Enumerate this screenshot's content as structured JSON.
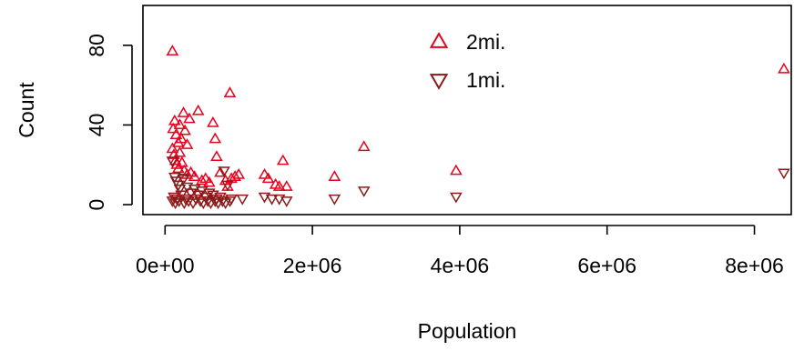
{
  "chart_data": {
    "type": "scatter",
    "xlabel": "Population",
    "ylabel": "Count",
    "xlim": [
      -300000,
      8500000
    ],
    "ylim": [
      -5,
      100
    ],
    "x_ticks": [
      0,
      2000000,
      4000000,
      6000000,
      8000000
    ],
    "x_tick_labels": [
      "0e+00",
      "2e+06",
      "4e+06",
      "6e+06",
      "8e+06"
    ],
    "y_ticks": [
      0,
      40,
      80
    ],
    "y_tick_labels": [
      "0",
      "40",
      "80"
    ],
    "legend": {
      "position": "top-center"
    },
    "series": [
      {
        "name": "2mi.",
        "marker": "triangle-up",
        "color": "#e8001c",
        "points": [
          [
            100000,
            77
          ],
          [
            110000,
            38
          ],
          [
            130000,
            42
          ],
          [
            150000,
            35
          ],
          [
            180000,
            31
          ],
          [
            200000,
            40
          ],
          [
            220000,
            33
          ],
          [
            250000,
            46
          ],
          [
            270000,
            37
          ],
          [
            300000,
            30
          ],
          [
            330000,
            43
          ],
          [
            450000,
            47
          ],
          [
            650000,
            41
          ],
          [
            680000,
            33
          ],
          [
            700000,
            24
          ],
          [
            880000,
            56
          ],
          [
            950000,
            14
          ],
          [
            1000000,
            15
          ],
          [
            1350000,
            15
          ],
          [
            1400000,
            13
          ],
          [
            1550000,
            9
          ],
          [
            1600000,
            22
          ],
          [
            1650000,
            9
          ],
          [
            2300000,
            14
          ],
          [
            2700000,
            29
          ],
          [
            3950000,
            17
          ],
          [
            8400000,
            68
          ],
          [
            100000,
            28
          ],
          [
            120000,
            25
          ],
          [
            140000,
            22
          ],
          [
            160000,
            20
          ],
          [
            180000,
            18
          ],
          [
            200000,
            26
          ],
          [
            230000,
            21
          ],
          [
            260000,
            17
          ],
          [
            300000,
            15
          ],
          [
            350000,
            16
          ],
          [
            400000,
            14
          ],
          [
            500000,
            12
          ],
          [
            550000,
            13
          ],
          [
            600000,
            11
          ],
          [
            750000,
            16
          ],
          [
            820000,
            12
          ],
          [
            850000,
            9
          ],
          [
            900000,
            13
          ],
          [
            1500000,
            10
          ]
        ]
      },
      {
        "name": "1mi.",
        "marker": "triangle-down",
        "color": "#8b1a1a",
        "points": [
          [
            100000,
            22
          ],
          [
            130000,
            14
          ],
          [
            150000,
            12
          ],
          [
            180000,
            10
          ],
          [
            200000,
            8
          ],
          [
            250000,
            13
          ],
          [
            300000,
            9
          ],
          [
            350000,
            6
          ],
          [
            400000,
            8
          ],
          [
            450000,
            5
          ],
          [
            500000,
            7
          ],
          [
            550000,
            4
          ],
          [
            600000,
            6
          ],
          [
            650000,
            5
          ],
          [
            700000,
            3
          ],
          [
            750000,
            4
          ],
          [
            800000,
            17
          ],
          [
            850000,
            10
          ],
          [
            900000,
            3
          ],
          [
            1050000,
            3
          ],
          [
            1350000,
            4
          ],
          [
            1450000,
            3
          ],
          [
            1550000,
            3
          ],
          [
            1650000,
            2
          ],
          [
            2300000,
            3
          ],
          [
            2700000,
            7
          ],
          [
            3950000,
            4
          ],
          [
            8400000,
            16
          ],
          [
            100000,
            2
          ],
          [
            120000,
            4
          ],
          [
            140000,
            1
          ],
          [
            160000,
            3
          ],
          [
            190000,
            2
          ],
          [
            220000,
            5
          ],
          [
            260000,
            1
          ],
          [
            280000,
            3
          ],
          [
            320000,
            2
          ],
          [
            380000,
            1
          ],
          [
            420000,
            3
          ],
          [
            480000,
            2
          ],
          [
            520000,
            1
          ],
          [
            580000,
            2
          ],
          [
            620000,
            1
          ],
          [
            680000,
            2
          ],
          [
            720000,
            1
          ],
          [
            780000,
            2
          ],
          [
            820000,
            1
          ],
          [
            880000,
            2
          ]
        ]
      }
    ]
  }
}
